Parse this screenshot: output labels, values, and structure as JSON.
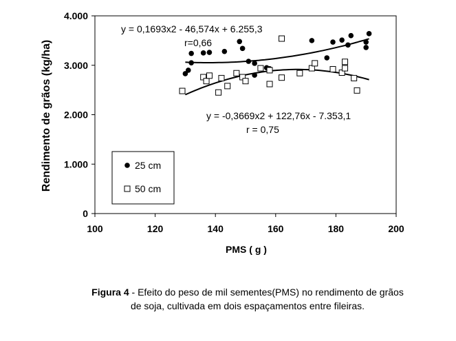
{
  "chart_data": {
    "type": "scatter",
    "xlabel": "PMS ( g )",
    "ylabel": "Rendimento de grãos  (kg/ha)",
    "xlim": [
      100,
      200
    ],
    "ylim": [
      0,
      4000
    ],
    "x_ticks": [
      "100",
      "120",
      "140",
      "160",
      "180",
      "200"
    ],
    "y_ticks": [
      "0",
      "1.000",
      "2.000",
      "3.000",
      "4.000"
    ],
    "grid": false,
    "legend_position": "bottom-left",
    "series": [
      {
        "name": "25 cm",
        "marker": "filled-circle",
        "points": [
          [
            130,
            2830
          ],
          [
            131,
            2900
          ],
          [
            132,
            3050
          ],
          [
            132,
            3240
          ],
          [
            136,
            3250
          ],
          [
            138,
            3260
          ],
          [
            143,
            3280
          ],
          [
            148,
            3480
          ],
          [
            149,
            3340
          ],
          [
            151,
            3080
          ],
          [
            153,
            2800
          ],
          [
            153,
            3040
          ],
          [
            157,
            2950
          ],
          [
            158,
            2930
          ],
          [
            172,
            3500
          ],
          [
            177,
            3150
          ],
          [
            179,
            3470
          ],
          [
            182,
            3510
          ],
          [
            184,
            3410
          ],
          [
            185,
            3600
          ],
          [
            190,
            3360
          ],
          [
            190,
            3470
          ],
          [
            191,
            3640
          ]
        ],
        "trend": {
          "equation": "y = 0,1693x2 - 46,574x + 6.255,3",
          "r": "r=0,66",
          "a": 0.1693,
          "b": -46.574,
          "c": 6255.3,
          "x_range": [
            130,
            191
          ]
        }
      },
      {
        "name": "50 cm",
        "marker": "open-square",
        "points": [
          [
            129,
            2480
          ],
          [
            136,
            2760
          ],
          [
            137,
            2680
          ],
          [
            138,
            2790
          ],
          [
            141,
            2450
          ],
          [
            142,
            2740
          ],
          [
            144,
            2580
          ],
          [
            147,
            2840
          ],
          [
            149,
            2760
          ],
          [
            150,
            2680
          ],
          [
            155,
            2940
          ],
          [
            158,
            2620
          ],
          [
            158,
            2900
          ],
          [
            162,
            2750
          ],
          [
            162,
            3540
          ],
          [
            168,
            2840
          ],
          [
            172,
            2940
          ],
          [
            173,
            3040
          ],
          [
            179,
            2920
          ],
          [
            182,
            2850
          ],
          [
            183,
            2940
          ],
          [
            183,
            3070
          ],
          [
            186,
            2740
          ],
          [
            187,
            2490
          ]
        ],
        "trend": {
          "equation": "y = -0,3669x2 + 122,76x - 7.353,1",
          "r": "r = 0,75",
          "a": -0.3669,
          "b": 122.76,
          "c": -7353.1,
          "x_range": [
            130,
            191
          ]
        }
      }
    ]
  },
  "caption": {
    "label": "Figura 4",
    "text": " - Efeito do peso de mil sementes(PMS) no rendimento de grãos",
    "line2": "de soja, cultivada em dois espaçamentos entre fileiras."
  }
}
